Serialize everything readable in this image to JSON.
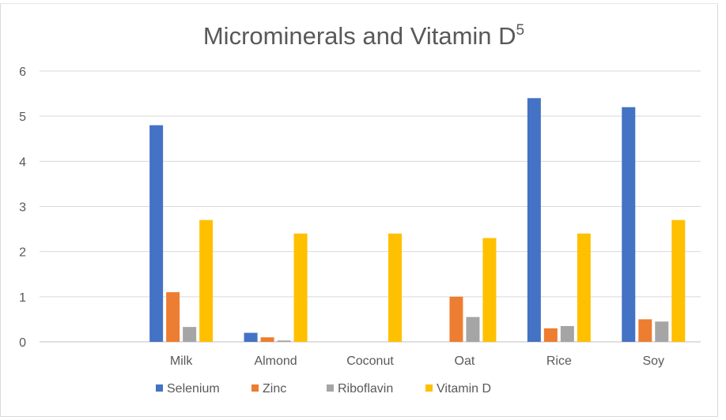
{
  "chart_data": {
    "type": "bar",
    "title": "Microminerals and Vitamin D",
    "title_superscript": "5",
    "categories": [
      "",
      "Milk",
      "Almond",
      "Coconut",
      "Oat",
      "Rice",
      "Soy"
    ],
    "ylim": [
      0,
      6
    ],
    "yticks": [
      0,
      1,
      2,
      3,
      4,
      5,
      6
    ],
    "grid": true,
    "legend_position": "bottom",
    "series": [
      {
        "name": "Selenium",
        "color": "#4472C4",
        "values": [
          null,
          4.8,
          0.2,
          0,
          0,
          5.4,
          5.2
        ]
      },
      {
        "name": "Zinc",
        "color": "#ED7D31",
        "values": [
          null,
          1.1,
          0.1,
          0,
          1.0,
          0.3,
          0.5
        ]
      },
      {
        "name": "Riboflavin",
        "color": "#A5A5A5",
        "values": [
          null,
          0.33,
          0.03,
          0,
          0.55,
          0.35,
          0.45
        ]
      },
      {
        "name": "Vitamin D",
        "color": "#FFC000",
        "values": [
          null,
          2.7,
          2.4,
          2.4,
          2.3,
          2.4,
          2.7
        ]
      }
    ]
  }
}
